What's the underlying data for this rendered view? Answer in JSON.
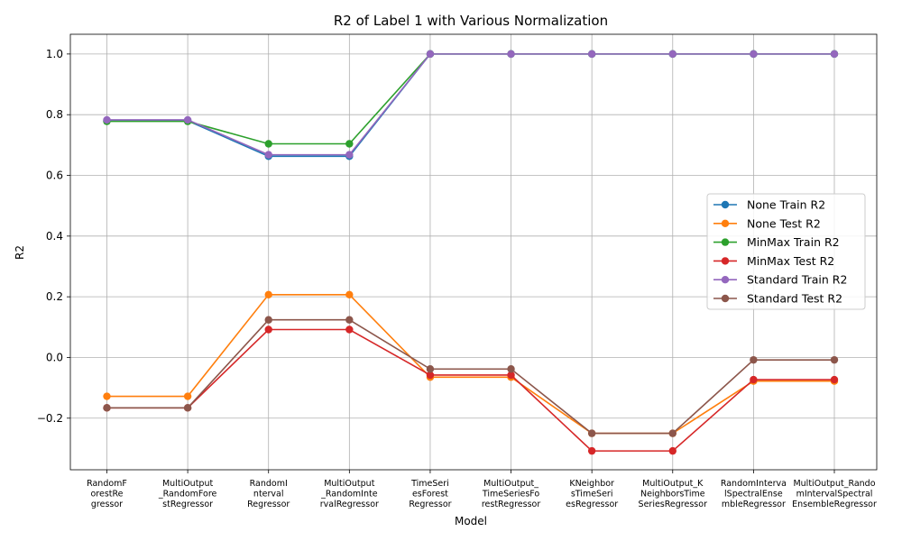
{
  "chart_data": {
    "type": "line",
    "title": "R2 of Label 1 with Various Normalization",
    "xlabel": "Model",
    "ylabel": "R2",
    "categories": [
      "RandomF\norestRe\ngressor",
      "MultiOutput\n_RandomFore\nstRegressor",
      "RandomI\nnterval\nRegressor",
      "MultiOutput\n_RandomInte\nrvalRegressor",
      "TimeSeri\nesForest\nRegressor",
      "MultiOutput_\nTimeSeriesFo\nrestRegressor",
      "KNeighbor\nsTimeSeri\nesRegressor",
      "MultiOutput_K\nNeighborsTime\nSeriesRegressor",
      "RandomInterva\nlSpectralEnse\nmbleRegressor",
      "MultiOutput_Rando\nmIntervalSpectral\nEnsembleRegressor"
    ],
    "ylim": [
      -0.37,
      1.065
    ],
    "yticks": [
      -0.2,
      0.0,
      0.2,
      0.4,
      0.6,
      0.8,
      1.0
    ],
    "ytick_labels": [
      "−0.2",
      "0.0",
      "0.2",
      "0.4",
      "0.6",
      "0.8",
      "1.0"
    ],
    "grid": true,
    "legend_position": "center-right",
    "series": [
      {
        "name": "None Train R2",
        "color": "#1f77b4",
        "values": [
          0.78,
          0.78,
          0.663,
          0.663,
          1.0,
          1.0,
          1.0,
          1.0,
          1.0,
          1.0
        ]
      },
      {
        "name": "None Test R2",
        "color": "#ff7f0e",
        "values": [
          -0.128,
          -0.128,
          0.207,
          0.207,
          -0.065,
          -0.065,
          -0.25,
          -0.25,
          -0.078,
          -0.078
        ]
      },
      {
        "name": "MinMax Train R2",
        "color": "#2ca02c",
        "values": [
          0.778,
          0.778,
          0.704,
          0.704,
          1.0,
          1.0,
          1.0,
          1.0,
          1.0,
          1.0
        ]
      },
      {
        "name": "MinMax Test R2",
        "color": "#d62728",
        "values": [
          -0.166,
          -0.166,
          0.092,
          0.092,
          -0.058,
          -0.058,
          -0.308,
          -0.308,
          -0.073,
          -0.073
        ]
      },
      {
        "name": "Standard Train R2",
        "color": "#9467bd",
        "values": [
          0.783,
          0.783,
          0.668,
          0.668,
          1.0,
          1.0,
          1.0,
          1.0,
          1.0,
          1.0
        ]
      },
      {
        "name": "Standard Test R2",
        "color": "#8c564b",
        "values": [
          -0.166,
          -0.166,
          0.124,
          0.124,
          -0.038,
          -0.038,
          -0.25,
          -0.25,
          -0.008,
          -0.008
        ]
      }
    ]
  }
}
